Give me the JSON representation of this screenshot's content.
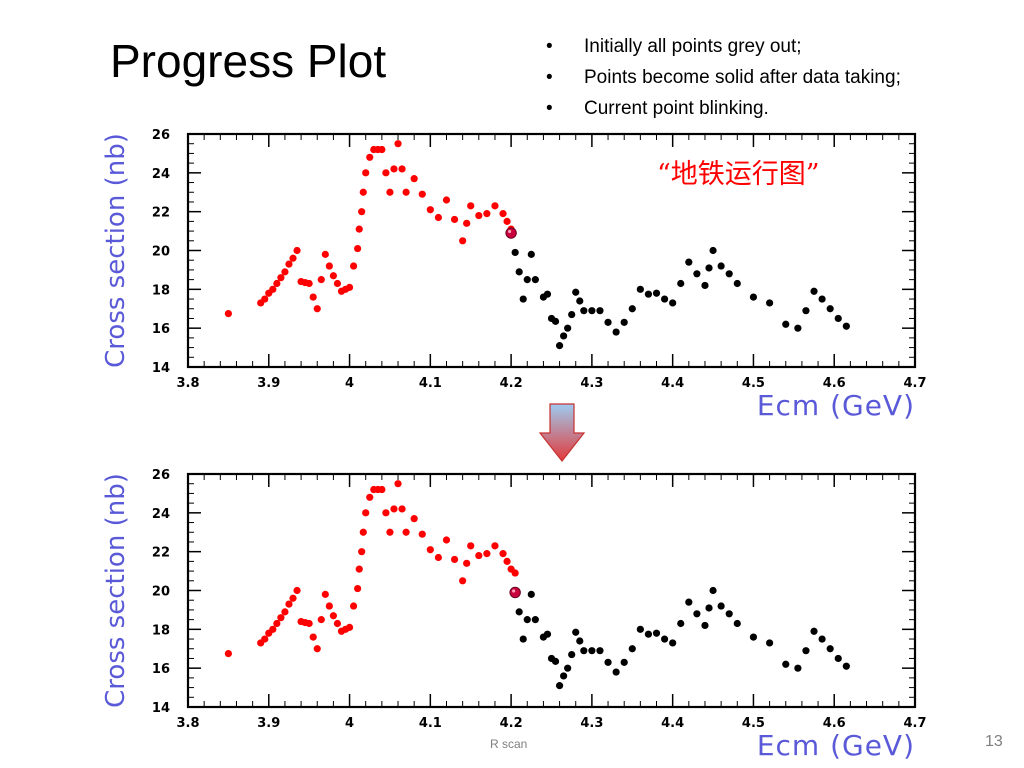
{
  "slide": {
    "title": "Progress Plot",
    "bullets": [
      "Initially all points grey out;",
      "Points become solid after data taking;",
      "Current point blinking."
    ],
    "chinese_label": "“地铁运行图”",
    "footer": "R scan",
    "page_number": "13"
  },
  "colors": {
    "done": "#ff0000",
    "pending": "#000000",
    "current": "#c8003c",
    "axis_label": "#5a5ad8",
    "arrow_top": "#9ecbf0",
    "arrow_bottom": "#e23a3a"
  },
  "chart_data": [
    {
      "type": "scatter",
      "xlabel": "Ecm  (GeV)",
      "ylabel": "Cross section (nb)",
      "xlim": [
        3.8,
        4.7
      ],
      "ylim": [
        14,
        26
      ],
      "xticks": [
        "3.8",
        "3.9",
        "4",
        "4.1",
        "4.2",
        "4.3",
        "4.4",
        "4.5",
        "4.6",
        "4.7"
      ],
      "yticks": [
        "14",
        "16",
        "18",
        "20",
        "22",
        "24",
        "26"
      ],
      "series": [
        {
          "status": "done",
          "points": [
            [
              3.85,
              16.75
            ],
            [
              3.89,
              17.3
            ],
            [
              3.895,
              17.5
            ],
            [
              3.9,
              17.8
            ],
            [
              3.905,
              18.0
            ],
            [
              3.91,
              18.3
            ],
            [
              3.915,
              18.6
            ],
            [
              3.92,
              18.9
            ],
            [
              3.925,
              19.3
            ],
            [
              3.93,
              19.6
            ],
            [
              3.935,
              20.0
            ],
            [
              3.94,
              18.4
            ],
            [
              3.945,
              18.35
            ],
            [
              3.95,
              18.3
            ],
            [
              3.955,
              17.6
            ],
            [
              3.96,
              17.0
            ],
            [
              3.965,
              18.5
            ],
            [
              3.97,
              19.8
            ],
            [
              3.975,
              19.2
            ],
            [
              3.98,
              18.7
            ],
            [
              3.985,
              18.3
            ],
            [
              3.99,
              17.9
            ],
            [
              3.995,
              18.0
            ],
            [
              4.0,
              18.1
            ],
            [
              4.005,
              19.2
            ],
            [
              4.01,
              20.1
            ],
            [
              4.012,
              21.1
            ],
            [
              4.015,
              22.0
            ],
            [
              4.017,
              23.0
            ],
            [
              4.02,
              24.0
            ],
            [
              4.025,
              24.8
            ],
            [
              4.03,
              25.2
            ],
            [
              4.035,
              25.2
            ],
            [
              4.04,
              25.2
            ],
            [
              4.045,
              24.0
            ],
            [
              4.05,
              23.0
            ],
            [
              4.055,
              24.2
            ],
            [
              4.06,
              25.5
            ],
            [
              4.065,
              24.2
            ],
            [
              4.07,
              23.0
            ],
            [
              4.08,
              23.7
            ],
            [
              4.09,
              22.9
            ],
            [
              4.1,
              22.1
            ],
            [
              4.11,
              21.7
            ],
            [
              4.12,
              22.6
            ],
            [
              4.13,
              21.6
            ],
            [
              4.14,
              20.5
            ],
            [
              4.145,
              21.4
            ],
            [
              4.15,
              22.3
            ],
            [
              4.16,
              21.8
            ],
            [
              4.17,
              21.9
            ],
            [
              4.18,
              22.3
            ],
            [
              4.19,
              21.9
            ],
            [
              4.195,
              21.5
            ],
            [
              4.2,
              21.1
            ]
          ]
        },
        {
          "status": "current",
          "points": [
            [
              4.2,
              20.9
            ]
          ]
        },
        {
          "status": "pending",
          "points": [
            [
              4.205,
              19.9
            ],
            [
              4.21,
              18.9
            ],
            [
              4.215,
              17.5
            ],
            [
              4.22,
              18.5
            ],
            [
              4.225,
              19.8
            ],
            [
              4.23,
              18.5
            ],
            [
              4.24,
              17.6
            ],
            [
              4.245,
              17.75
            ],
            [
              4.25,
              16.5
            ],
            [
              4.255,
              16.35
            ],
            [
              4.26,
              15.1
            ],
            [
              4.265,
              15.6
            ],
            [
              4.27,
              16.0
            ],
            [
              4.275,
              16.7
            ],
            [
              4.28,
              17.85
            ],
            [
              4.285,
              17.4
            ],
            [
              4.29,
              16.9
            ],
            [
              4.3,
              16.9
            ],
            [
              4.31,
              16.9
            ],
            [
              4.32,
              16.3
            ],
            [
              4.33,
              15.8
            ],
            [
              4.34,
              16.3
            ],
            [
              4.35,
              17.0
            ],
            [
              4.36,
              18.0
            ],
            [
              4.37,
              17.75
            ],
            [
              4.38,
              17.8
            ],
            [
              4.39,
              17.5
            ],
            [
              4.4,
              17.3
            ],
            [
              4.41,
              18.3
            ],
            [
              4.42,
              19.4
            ],
            [
              4.43,
              18.8
            ],
            [
              4.44,
              18.2
            ],
            [
              4.445,
              19.1
            ],
            [
              4.45,
              20.0
            ],
            [
              4.46,
              19.2
            ],
            [
              4.47,
              18.8
            ],
            [
              4.48,
              18.3
            ],
            [
              4.5,
              17.6
            ],
            [
              4.52,
              17.3
            ],
            [
              4.54,
              16.2
            ],
            [
              4.555,
              16.0
            ],
            [
              4.565,
              16.9
            ],
            [
              4.575,
              17.9
            ],
            [
              4.585,
              17.5
            ],
            [
              4.595,
              17.0
            ],
            [
              4.605,
              16.5
            ],
            [
              4.615,
              16.1
            ]
          ]
        }
      ]
    },
    {
      "type": "scatter",
      "xlabel": "Ecm  (GeV)",
      "ylabel": "Cross section (nb)",
      "xlim": [
        3.8,
        4.7
      ],
      "ylim": [
        14,
        26
      ],
      "xticks": [
        "3.8",
        "3.9",
        "4",
        "4.1",
        "4.2",
        "4.3",
        "4.4",
        "4.5",
        "4.6",
        "4.7"
      ],
      "yticks": [
        "14",
        "16",
        "18",
        "20",
        "22",
        "24",
        "26"
      ],
      "series": [
        {
          "status": "done",
          "points": [
            [
              3.85,
              16.75
            ],
            [
              3.89,
              17.3
            ],
            [
              3.895,
              17.5
            ],
            [
              3.9,
              17.8
            ],
            [
              3.905,
              18.0
            ],
            [
              3.91,
              18.3
            ],
            [
              3.915,
              18.6
            ],
            [
              3.92,
              18.9
            ],
            [
              3.925,
              19.3
            ],
            [
              3.93,
              19.6
            ],
            [
              3.935,
              20.0
            ],
            [
              3.94,
              18.4
            ],
            [
              3.945,
              18.35
            ],
            [
              3.95,
              18.3
            ],
            [
              3.955,
              17.6
            ],
            [
              3.96,
              17.0
            ],
            [
              3.965,
              18.5
            ],
            [
              3.97,
              19.8
            ],
            [
              3.975,
              19.2
            ],
            [
              3.98,
              18.7
            ],
            [
              3.985,
              18.3
            ],
            [
              3.99,
              17.9
            ],
            [
              3.995,
              18.0
            ],
            [
              4.0,
              18.1
            ],
            [
              4.005,
              19.2
            ],
            [
              4.01,
              20.1
            ],
            [
              4.012,
              21.1
            ],
            [
              4.015,
              22.0
            ],
            [
              4.017,
              23.0
            ],
            [
              4.02,
              24.0
            ],
            [
              4.025,
              24.8
            ],
            [
              4.03,
              25.2
            ],
            [
              4.035,
              25.2
            ],
            [
              4.04,
              25.2
            ],
            [
              4.045,
              24.0
            ],
            [
              4.05,
              23.0
            ],
            [
              4.055,
              24.2
            ],
            [
              4.06,
              25.5
            ],
            [
              4.065,
              24.2
            ],
            [
              4.07,
              23.0
            ],
            [
              4.08,
              23.7
            ],
            [
              4.09,
              22.9
            ],
            [
              4.1,
              22.1
            ],
            [
              4.11,
              21.7
            ],
            [
              4.12,
              22.6
            ],
            [
              4.13,
              21.6
            ],
            [
              4.14,
              20.5
            ],
            [
              4.145,
              21.4
            ],
            [
              4.15,
              22.3
            ],
            [
              4.16,
              21.8
            ],
            [
              4.17,
              21.9
            ],
            [
              4.18,
              22.3
            ],
            [
              4.19,
              21.9
            ],
            [
              4.195,
              21.5
            ],
            [
              4.2,
              21.1
            ],
            [
              4.205,
              20.9
            ]
          ]
        },
        {
          "status": "current",
          "points": [
            [
              4.205,
              19.9
            ]
          ]
        },
        {
          "status": "pending",
          "points": [
            [
              4.21,
              18.9
            ],
            [
              4.215,
              17.5
            ],
            [
              4.22,
              18.5
            ],
            [
              4.225,
              19.8
            ],
            [
              4.23,
              18.5
            ],
            [
              4.24,
              17.6
            ],
            [
              4.245,
              17.75
            ],
            [
              4.25,
              16.5
            ],
            [
              4.255,
              16.35
            ],
            [
              4.26,
              15.1
            ],
            [
              4.265,
              15.6
            ],
            [
              4.27,
              16.0
            ],
            [
              4.275,
              16.7
            ],
            [
              4.28,
              17.85
            ],
            [
              4.285,
              17.4
            ],
            [
              4.29,
              16.9
            ],
            [
              4.3,
              16.9
            ],
            [
              4.31,
              16.9
            ],
            [
              4.32,
              16.3
            ],
            [
              4.33,
              15.8
            ],
            [
              4.34,
              16.3
            ],
            [
              4.35,
              17.0
            ],
            [
              4.36,
              18.0
            ],
            [
              4.37,
              17.75
            ],
            [
              4.38,
              17.8
            ],
            [
              4.39,
              17.5
            ],
            [
              4.4,
              17.3
            ],
            [
              4.41,
              18.3
            ],
            [
              4.42,
              19.4
            ],
            [
              4.43,
              18.8
            ],
            [
              4.44,
              18.2
            ],
            [
              4.445,
              19.1
            ],
            [
              4.45,
              20.0
            ],
            [
              4.46,
              19.2
            ],
            [
              4.47,
              18.8
            ],
            [
              4.48,
              18.3
            ],
            [
              4.5,
              17.6
            ],
            [
              4.52,
              17.3
            ],
            [
              4.54,
              16.2
            ],
            [
              4.555,
              16.0
            ],
            [
              4.565,
              16.9
            ],
            [
              4.575,
              17.9
            ],
            [
              4.585,
              17.5
            ],
            [
              4.595,
              17.0
            ],
            [
              4.605,
              16.5
            ],
            [
              4.615,
              16.1
            ]
          ]
        }
      ]
    }
  ]
}
